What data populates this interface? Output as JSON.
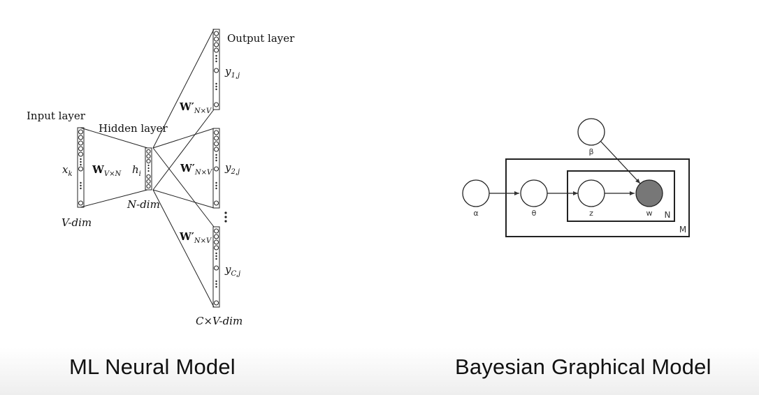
{
  "neural": {
    "caption": "ML Neural Model",
    "input_layer": "Input layer",
    "hidden_layer": "Hidden layer",
    "output_layer": "Output layer",
    "xk": "x",
    "xk_sub": "k",
    "w_in": "W",
    "w_in_sub": "V×N",
    "hi": "h",
    "hi_sub": "i",
    "v_dim": "V-dim",
    "n_dim": "N-dim",
    "w_out": "W′",
    "w_out_sub": "N×V",
    "y1": "y",
    "y1_sub": "1,j",
    "y2": "y",
    "y2_sub": "2,j",
    "yc": "y",
    "yc_sub": "C,j",
    "cv_dim": "C×V-dim"
  },
  "bayes": {
    "caption": "Bayesian Graphical Model",
    "nodes": {
      "alpha": "α",
      "theta": "θ",
      "z": "z",
      "w": "w",
      "beta": "β"
    },
    "plate_n": "N",
    "plate_m": "M",
    "observed_fill": "#777777"
  }
}
